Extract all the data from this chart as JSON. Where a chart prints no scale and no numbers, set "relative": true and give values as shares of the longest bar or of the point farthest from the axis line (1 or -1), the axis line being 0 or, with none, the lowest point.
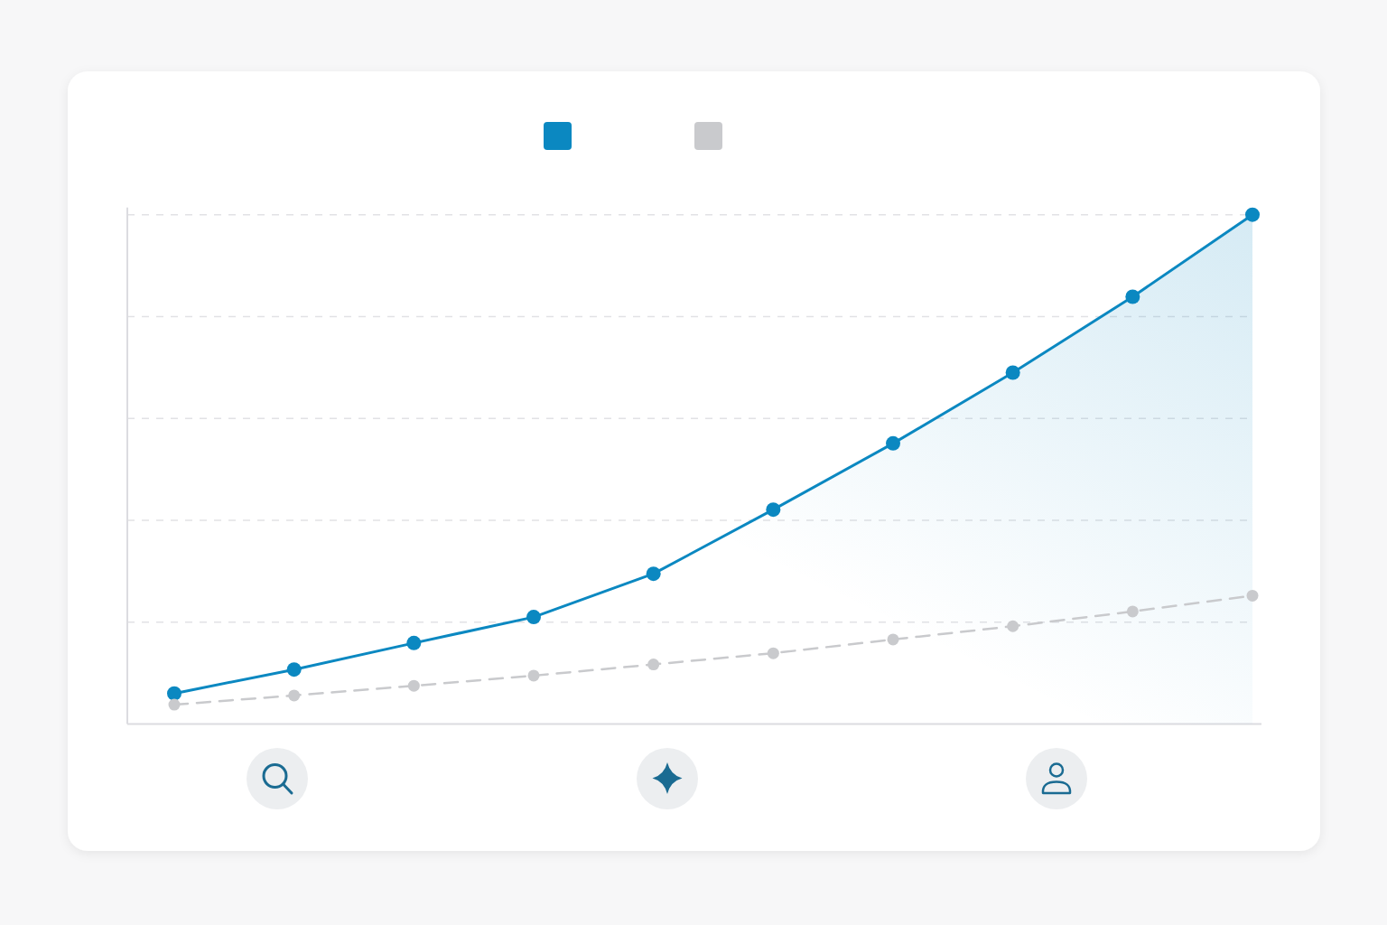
{
  "chart_data": {
    "type": "line",
    "relative": true,
    "categories": [
      null,
      null,
      null,
      null,
      null,
      null,
      null,
      null,
      null,
      null
    ],
    "series": [
      {
        "type": "area",
        "color": "#0b88c1",
        "values": [
          0.06,
          0.107,
          0.159,
          0.21,
          0.295,
          0.421,
          0.551,
          0.69,
          0.839,
          1
        ]
      },
      {
        "color": "#c9cacd",
        "line_style": "dashed",
        "values": [
          0.038,
          0.056,
          0.075,
          0.095,
          0.117,
          0.139,
          0.166,
          0.192,
          0.221,
          0.252
        ]
      }
    ],
    "marker": "circle",
    "grid": "y"
  }
}
